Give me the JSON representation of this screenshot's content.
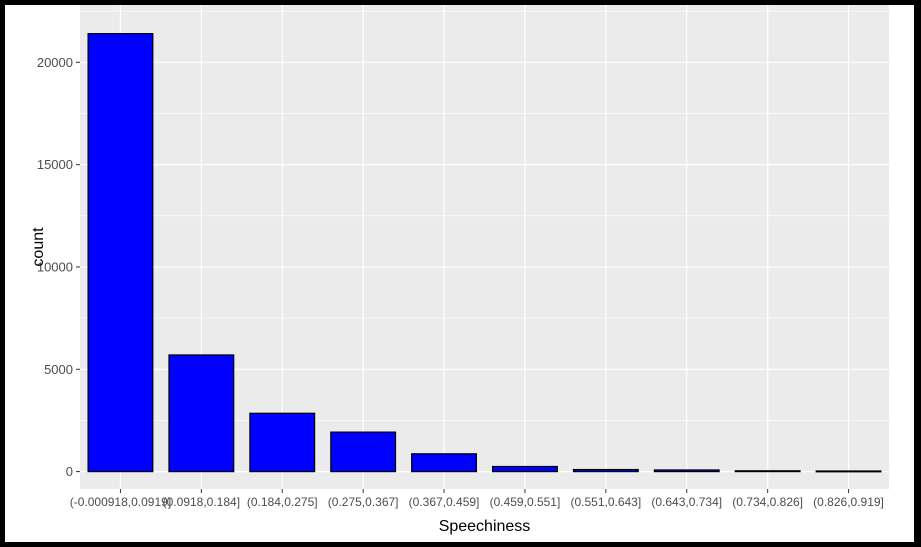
{
  "chart_data": {
    "type": "bar",
    "xlabel": "Speechiness",
    "ylabel": "count",
    "categories": [
      "(-0.000918,0.0919]",
      "(0.0918,0.184]",
      "(0.184,0.275]",
      "(0.275,0.367]",
      "(0.367,0.459]",
      "(0.459,0.551]",
      "(0.551,0.643]",
      "(0.643,0.734]",
      "(0.734,0.826]",
      "(0.826,0.919]"
    ],
    "values": [
      21400,
      5700,
      2850,
      1930,
      870,
      250,
      100,
      80,
      40,
      30
    ],
    "ylim": [
      -850,
      22800
    ],
    "y_ticks": [
      0,
      5000,
      10000,
      15000,
      20000
    ],
    "y_tick_labels": [
      "0",
      "5000",
      "10000",
      "15000",
      "20000"
    ],
    "grid": true,
    "colors": {
      "bar_fill": "#0000ff",
      "bar_stroke": "#000000",
      "panel_background": "#ebebeb",
      "grid": "#ffffff"
    }
  }
}
